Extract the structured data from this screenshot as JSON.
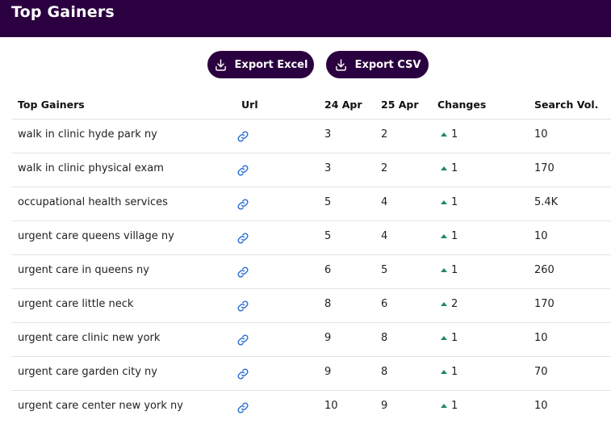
{
  "header": {
    "title": "Top Gainers"
  },
  "toolbar": {
    "export_excel_label": "Export Excel",
    "export_csv_label": "Export CSV"
  },
  "table": {
    "columns": {
      "keyword": "Top Gainers",
      "url": "Url",
      "date_a": "24 Apr",
      "date_b": "25 Apr",
      "changes": "Changes",
      "search_vol": "Search Vol."
    },
    "rows": [
      {
        "keyword": "walk in clinic hyde park ny",
        "a": "3",
        "b": "2",
        "change": "1",
        "vol": "10"
      },
      {
        "keyword": "walk in clinic physical exam",
        "a": "3",
        "b": "2",
        "change": "1",
        "vol": "170"
      },
      {
        "keyword": "occupational health services",
        "a": "5",
        "b": "4",
        "change": "1",
        "vol": "5.4K"
      },
      {
        "keyword": "urgent care queens village ny",
        "a": "5",
        "b": "4",
        "change": "1",
        "vol": "10"
      },
      {
        "keyword": "urgent care in queens ny",
        "a": "6",
        "b": "5",
        "change": "1",
        "vol": "260"
      },
      {
        "keyword": "urgent care little neck",
        "a": "8",
        "b": "6",
        "change": "2",
        "vol": "170"
      },
      {
        "keyword": "urgent care clinic new york",
        "a": "9",
        "b": "8",
        "change": "1",
        "vol": "10"
      },
      {
        "keyword": "urgent care garden city ny",
        "a": "9",
        "b": "8",
        "change": "1",
        "vol": "70"
      },
      {
        "keyword": "urgent care center new york ny",
        "a": "10",
        "b": "9",
        "change": "1",
        "vol": "10"
      }
    ]
  },
  "icons": {
    "export": "download-icon",
    "url": "link-icon",
    "change_up": "caret-up-icon"
  },
  "colors": {
    "header_bg": "#2b0040",
    "button_bg": "#2b0040",
    "link_icon": "#2f6fd6",
    "change_up": "#1f8a5a"
  }
}
